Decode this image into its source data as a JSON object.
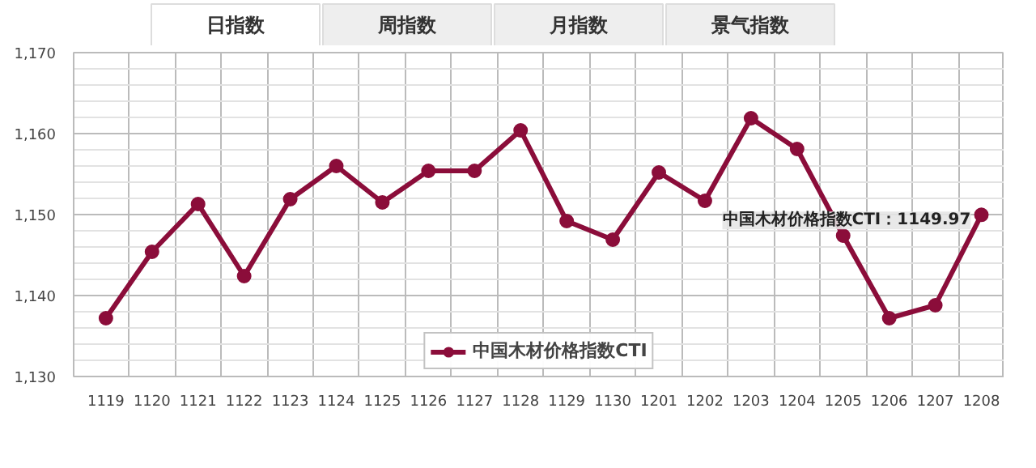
{
  "chart_data": {
    "type": "line",
    "categories": [
      "1119",
      "1120",
      "1121",
      "1122",
      "1123",
      "1124",
      "1125",
      "1126",
      "1127",
      "1128",
      "1129",
      "1130",
      "1201",
      "1202",
      "1203",
      "1204",
      "1205",
      "1206",
      "1207",
      "1208"
    ],
    "series": [
      {
        "name": "中国木材价格指数CTI",
        "color": "#8b0d3a",
        "values": [
          1137.2,
          1145.4,
          1151.3,
          1142.4,
          1151.9,
          1156.0,
          1151.5,
          1155.4,
          1155.4,
          1160.4,
          1149.2,
          1146.9,
          1155.2,
          1151.7,
          1161.9,
          1158.1,
          1147.4,
          1137.2,
          1138.8,
          1149.97
        ]
      }
    ],
    "ylim": [
      1130,
      1170
    ],
    "yticks": [
      {
        "value": 1130,
        "label": "1,130"
      },
      {
        "value": 1140,
        "label": "1,140"
      },
      {
        "value": 1150,
        "label": "1,150"
      },
      {
        "value": 1160,
        "label": "1,160"
      },
      {
        "value": 1170,
        "label": "1,170"
      }
    ],
    "grid": true,
    "legend": "bottom",
    "marker": "circle",
    "line_style": "solid",
    "annotations": [
      "日指数",
      "周指数",
      "月指数",
      "景气指数",
      {
        "text": "中国木材价格指数CTI：1149.97",
        "x": "1208",
        "y": 1149.97
      }
    ]
  }
}
